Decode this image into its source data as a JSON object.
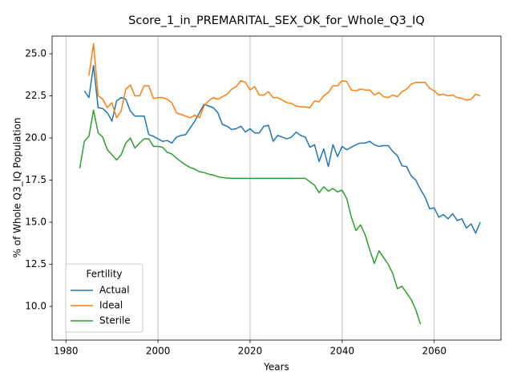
{
  "chart_data": {
    "type": "line",
    "title": "Score_1_in_PREMARITAL_SEX_OK_for_Whole_Q3_IQ",
    "x_label": "Years",
    "y_label": "% of Whole Q3_IQ Population",
    "x": [
      1983,
      1984,
      1985,
      1986,
      1987,
      1988,
      1989,
      1990,
      1991,
      1992,
      1993,
      1994,
      1995,
      1996,
      1997,
      1998,
      1999,
      2000,
      2001,
      2002,
      2003,
      2004,
      2005,
      2006,
      2007,
      2008,
      2009,
      2010,
      2011,
      2012,
      2013,
      2014,
      2015,
      2016,
      2017,
      2018,
      2019,
      2020,
      2021,
      2022,
      2023,
      2024,
      2025,
      2026,
      2027,
      2028,
      2029,
      2030,
      2031,
      2032,
      2033,
      2034,
      2035,
      2036,
      2037,
      2038,
      2039,
      2040,
      2041,
      2042,
      2043,
      2044,
      2045,
      2046,
      2047,
      2048,
      2049,
      2050,
      2051,
      2052,
      2053,
      2054,
      2055,
      2056,
      2057,
      2058,
      2059,
      2060,
      2061,
      2062,
      2063,
      2064,
      2065,
      2066,
      2067,
      2068,
      2069,
      2070
    ],
    "series": [
      {
        "name": "Actual",
        "color": "#1f77b4",
        "values": [
          null,
          22.8,
          22.4,
          24.3,
          21.8,
          21.75,
          21.5,
          21.0,
          22.2,
          22.4,
          22.3,
          21.6,
          21.3,
          21.3,
          21.3,
          20.2,
          20.1,
          19.95,
          19.8,
          19.85,
          19.7,
          20.05,
          20.15,
          20.2,
          20.6,
          21.0,
          21.5,
          22.0,
          21.9,
          21.8,
          21.5,
          20.8,
          20.7,
          20.5,
          20.55,
          20.7,
          20.35,
          20.55,
          20.3,
          20.3,
          20.7,
          20.75,
          19.8,
          20.15,
          20.05,
          19.95,
          20.05,
          20.35,
          20.15,
          20.05,
          19.45,
          19.6,
          18.6,
          19.35,
          18.3,
          19.6,
          18.9,
          19.5,
          19.3,
          19.45,
          19.6,
          19.7,
          19.7,
          19.8,
          19.6,
          19.5,
          19.55,
          19.55,
          19.2,
          18.95,
          18.35,
          18.3,
          17.75,
          17.5,
          16.95,
          16.5,
          15.8,
          15.85,
          15.3,
          15.45,
          15.2,
          15.5,
          15.1,
          15.2,
          14.65,
          14.9,
          14.35,
          15.0
        ]
      },
      {
        "name": "Ideal",
        "color": "#ff7f0e",
        "values": [
          null,
          null,
          23.7,
          25.6,
          22.5,
          22.3,
          21.8,
          22.1,
          21.2,
          21.6,
          22.9,
          23.15,
          22.5,
          22.5,
          23.1,
          23.1,
          22.35,
          22.4,
          22.4,
          22.3,
          22.1,
          21.5,
          21.4,
          21.3,
          21.2,
          21.35,
          21.2,
          21.9,
          22.2,
          22.4,
          22.3,
          22.45,
          22.6,
          22.9,
          23.05,
          23.4,
          23.3,
          22.85,
          23.05,
          22.55,
          22.55,
          22.75,
          22.4,
          22.4,
          22.25,
          22.1,
          22.05,
          21.9,
          21.85,
          21.85,
          21.8,
          22.2,
          22.15,
          22.5,
          22.7,
          23.1,
          23.1,
          23.4,
          23.35,
          22.85,
          22.8,
          22.9,
          22.85,
          22.85,
          22.55,
          22.7,
          22.45,
          22.4,
          22.55,
          22.45,
          22.75,
          22.9,
          23.2,
          23.3,
          23.3,
          23.3,
          22.95,
          22.8,
          22.55,
          22.6,
          22.5,
          22.55,
          22.4,
          22.35,
          22.25,
          22.3,
          22.6,
          22.5
        ]
      },
      {
        "name": "Sterile",
        "color": "#2ca02c",
        "values": [
          18.2,
          19.8,
          20.1,
          21.65,
          20.3,
          20.05,
          19.3,
          19.0,
          18.7,
          19.0,
          19.7,
          20.0,
          19.4,
          19.7,
          19.95,
          19.95,
          19.5,
          19.5,
          19.45,
          19.15,
          19.05,
          18.8,
          18.6,
          18.4,
          18.25,
          18.15,
          18.0,
          17.95,
          17.85,
          17.8,
          17.7,
          17.65,
          17.62,
          17.6,
          17.6,
          17.6,
          17.6,
          17.6,
          17.6,
          17.6,
          17.6,
          17.6,
          17.6,
          17.6,
          17.6,
          17.6,
          17.6,
          17.6,
          17.6,
          17.6,
          17.4,
          17.2,
          16.75,
          17.1,
          16.85,
          17.0,
          16.8,
          16.9,
          16.4,
          15.3,
          14.5,
          14.85,
          14.25,
          13.35,
          12.55,
          13.3,
          12.9,
          12.5,
          11.95,
          11.05,
          11.2,
          10.8,
          10.4,
          9.8,
          8.95,
          null,
          null,
          null,
          null,
          null,
          null,
          null,
          null,
          null,
          null,
          null,
          null,
          null
        ]
      }
    ],
    "xlim": [
      1977,
      2074.5
    ],
    "ylim": [
      8.0,
      26.05
    ],
    "xticks": [
      1980,
      2000,
      2020,
      2040,
      2060
    ],
    "yticks": [
      {
        "value": 10,
        "label": "10.0"
      },
      12.5,
      {
        "value": 15,
        "label": "15.0"
      },
      17.5,
      {
        "value": 20,
        "label": "20.0"
      },
      22.5,
      {
        "value": 25,
        "label": "25.0"
      }
    ],
    "grid": "x",
    "legend_title": "Fertility",
    "legend": "lower left"
  }
}
